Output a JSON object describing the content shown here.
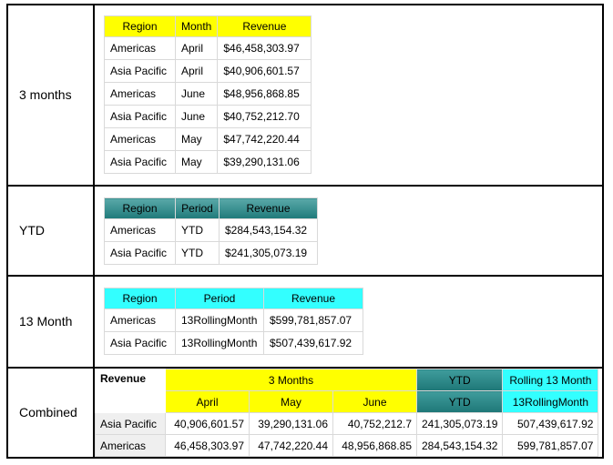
{
  "rows": {
    "three_months": "3 months",
    "ytd": "YTD",
    "thirteen_month": "13 Month",
    "combined": "Combined"
  },
  "table_3m": {
    "headers": [
      "Region",
      "Month",
      "Revenue"
    ],
    "rows": [
      [
        "Americas",
        "April",
        "$46,458,303.97"
      ],
      [
        "Asia Pacific",
        "April",
        "$40,906,601.57"
      ],
      [
        "Americas",
        "June",
        "$48,956,868.85"
      ],
      [
        "Asia Pacific",
        "June",
        "$40,752,212.70"
      ],
      [
        "Americas",
        "May",
        "$47,742,220.44"
      ],
      [
        "Asia Pacific",
        "May",
        "$39,290,131.06"
      ]
    ]
  },
  "table_ytd": {
    "headers": [
      "Region",
      "Period",
      "Revenue"
    ],
    "rows": [
      [
        "Americas",
        "YTD",
        "$284,543,154.32"
      ],
      [
        "Asia Pacific",
        "YTD",
        "$241,305,073.19"
      ]
    ]
  },
  "table_13m": {
    "headers": [
      "Region",
      "Period",
      "Revenue"
    ],
    "rows": [
      [
        "Americas",
        "13RollingMonth",
        "$599,781,857.07"
      ],
      [
        "Asia Pacific",
        "13RollingMonth",
        "$507,439,617.92"
      ]
    ]
  },
  "combined": {
    "corner": "Revenue",
    "group_3m": "3 Months",
    "group_ytd": "YTD",
    "group_13m": "Rolling 13 Month",
    "months": [
      "April",
      "May",
      "June"
    ],
    "ytd_sub": "YTD",
    "rolling_sub": "13RollingMonth",
    "rows": [
      [
        "Asia Pacific",
        "40,906,601.57",
        "39,290,131.06",
        "40,752,212.7",
        "241,305,073.19",
        "507,439,617.92"
      ],
      [
        "Americas",
        "46,458,303.97",
        "47,742,220.44",
        "48,956,868.85",
        "284,543,154.32",
        "599,781,857.07"
      ]
    ]
  },
  "colors": {
    "yellow_header": "#ffff00",
    "teal_header": "#2e8b8b",
    "cyan_header": "#33ffff"
  }
}
